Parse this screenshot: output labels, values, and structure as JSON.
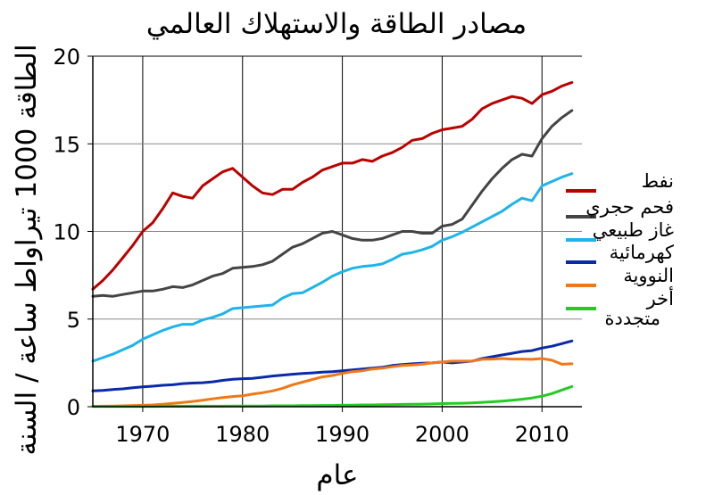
{
  "chart_data": {
    "type": "line",
    "title": "مصادر الطاقة والاستهلاك العالمي",
    "xlabel": "عام",
    "ylabel": "الطاقة 1000 تيراواط ساعة / السنة",
    "xlim": [
      1965,
      2014
    ],
    "ylim": [
      0,
      20
    ],
    "xticks": [
      1970,
      1980,
      1990,
      2000,
      2010
    ],
    "yticks": [
      0,
      5,
      10,
      15,
      20
    ],
    "grid": true,
    "legend_position": "right",
    "x": [
      1965,
      1966,
      1967,
      1968,
      1969,
      1970,
      1971,
      1972,
      1973,
      1974,
      1975,
      1976,
      1977,
      1978,
      1979,
      1980,
      1981,
      1982,
      1983,
      1984,
      1985,
      1986,
      1987,
      1988,
      1989,
      1990,
      1991,
      1992,
      1993,
      1994,
      1995,
      1996,
      1997,
      1998,
      1999,
      2000,
      2001,
      2002,
      2003,
      2004,
      2005,
      2006,
      2007,
      2008,
      2009,
      2010,
      2011,
      2012,
      2013
    ],
    "series": [
      {
        "name": "نفط",
        "color": "#bb0000",
        "values": [
          6.7,
          7.2,
          7.8,
          8.5,
          9.2,
          10.0,
          10.5,
          11.3,
          12.2,
          12.0,
          11.9,
          12.6,
          13.0,
          13.4,
          13.6,
          13.1,
          12.6,
          12.2,
          12.1,
          12.4,
          12.4,
          12.8,
          13.1,
          13.5,
          13.7,
          13.9,
          13.9,
          14.1,
          14.0,
          14.3,
          14.5,
          14.8,
          15.2,
          15.3,
          15.6,
          15.8,
          15.9,
          16.0,
          16.4,
          17.0,
          17.3,
          17.5,
          17.7,
          17.6,
          17.3,
          17.8,
          18.0,
          18.3,
          18.5
        ]
      },
      {
        "name": "فحم حجري",
        "color": "#444444",
        "values": [
          6.3,
          6.35,
          6.3,
          6.4,
          6.5,
          6.6,
          6.6,
          6.7,
          6.85,
          6.8,
          6.95,
          7.2,
          7.45,
          7.6,
          7.9,
          7.95,
          8.0,
          8.1,
          8.3,
          8.7,
          9.1,
          9.3,
          9.6,
          9.9,
          10.0,
          9.8,
          9.6,
          9.5,
          9.5,
          9.6,
          9.8,
          10.0,
          10.0,
          9.9,
          9.9,
          10.3,
          10.4,
          10.7,
          11.5,
          12.3,
          13.0,
          13.6,
          14.1,
          14.4,
          14.3,
          15.3,
          16.0,
          16.5,
          16.9
        ]
      },
      {
        "name": "غاز طبيعي",
        "color": "#1eb4ea",
        "values": [
          2.6,
          2.8,
          3.0,
          3.25,
          3.5,
          3.85,
          4.1,
          4.35,
          4.55,
          4.7,
          4.7,
          4.95,
          5.1,
          5.3,
          5.6,
          5.65,
          5.7,
          5.75,
          5.8,
          6.2,
          6.45,
          6.5,
          6.8,
          7.1,
          7.45,
          7.7,
          7.9,
          8.0,
          8.05,
          8.15,
          8.4,
          8.7,
          8.8,
          8.95,
          9.15,
          9.5,
          9.7,
          9.95,
          10.25,
          10.55,
          10.85,
          11.15,
          11.55,
          11.9,
          11.75,
          12.6,
          12.85,
          13.1,
          13.3
        ]
      },
      {
        "name": "كهرمائية",
        "color": "#0a2aaa",
        "values": [
          0.9,
          0.93,
          0.98,
          1.02,
          1.08,
          1.13,
          1.17,
          1.22,
          1.25,
          1.32,
          1.35,
          1.37,
          1.42,
          1.5,
          1.56,
          1.6,
          1.62,
          1.68,
          1.75,
          1.8,
          1.85,
          1.9,
          1.93,
          1.97,
          2.0,
          2.05,
          2.1,
          2.15,
          2.2,
          2.25,
          2.35,
          2.4,
          2.45,
          2.48,
          2.5,
          2.55,
          2.5,
          2.55,
          2.6,
          2.75,
          2.85,
          2.95,
          3.05,
          3.15,
          3.2,
          3.35,
          3.45,
          3.6,
          3.75
        ]
      },
      {
        "name": "النووية",
        "color": "#f07818",
        "values": [
          0.02,
          0.03,
          0.04,
          0.05,
          0.06,
          0.08,
          0.1,
          0.14,
          0.19,
          0.24,
          0.3,
          0.37,
          0.45,
          0.52,
          0.58,
          0.62,
          0.72,
          0.8,
          0.9,
          1.05,
          1.25,
          1.4,
          1.55,
          1.7,
          1.78,
          1.9,
          2.0,
          2.05,
          2.15,
          2.2,
          2.28,
          2.35,
          2.38,
          2.42,
          2.5,
          2.55,
          2.6,
          2.6,
          2.6,
          2.7,
          2.72,
          2.75,
          2.72,
          2.72,
          2.7,
          2.75,
          2.65,
          2.42,
          2.45
        ]
      },
      {
        "name": "أخر متجددة",
        "color": "#22cc22",
        "values": [
          0.02,
          0.02,
          0.02,
          0.02,
          0.02,
          0.02,
          0.02,
          0.03,
          0.03,
          0.03,
          0.03,
          0.03,
          0.03,
          0.03,
          0.04,
          0.04,
          0.04,
          0.04,
          0.05,
          0.05,
          0.05,
          0.06,
          0.06,
          0.07,
          0.07,
          0.08,
          0.09,
          0.1,
          0.1,
          0.11,
          0.12,
          0.13,
          0.14,
          0.15,
          0.16,
          0.18,
          0.19,
          0.2,
          0.22,
          0.25,
          0.28,
          0.32,
          0.37,
          0.43,
          0.5,
          0.6,
          0.75,
          0.95,
          1.15
        ]
      }
    ]
  },
  "legend": {
    "items": [
      {
        "label": "نفط",
        "color": "#bb0000"
      },
      {
        "label": "فحم حجري",
        "color": "#444444"
      },
      {
        "label": "غاز طبيعي",
        "color": "#1eb4ea"
      },
      {
        "label": "كهرمائية",
        "color": "#0a2aaa"
      },
      {
        "label": "النووية",
        "color": "#f07818"
      },
      {
        "label": "أخر",
        "label2": "متجددة",
        "color": "#22cc22"
      }
    ]
  }
}
